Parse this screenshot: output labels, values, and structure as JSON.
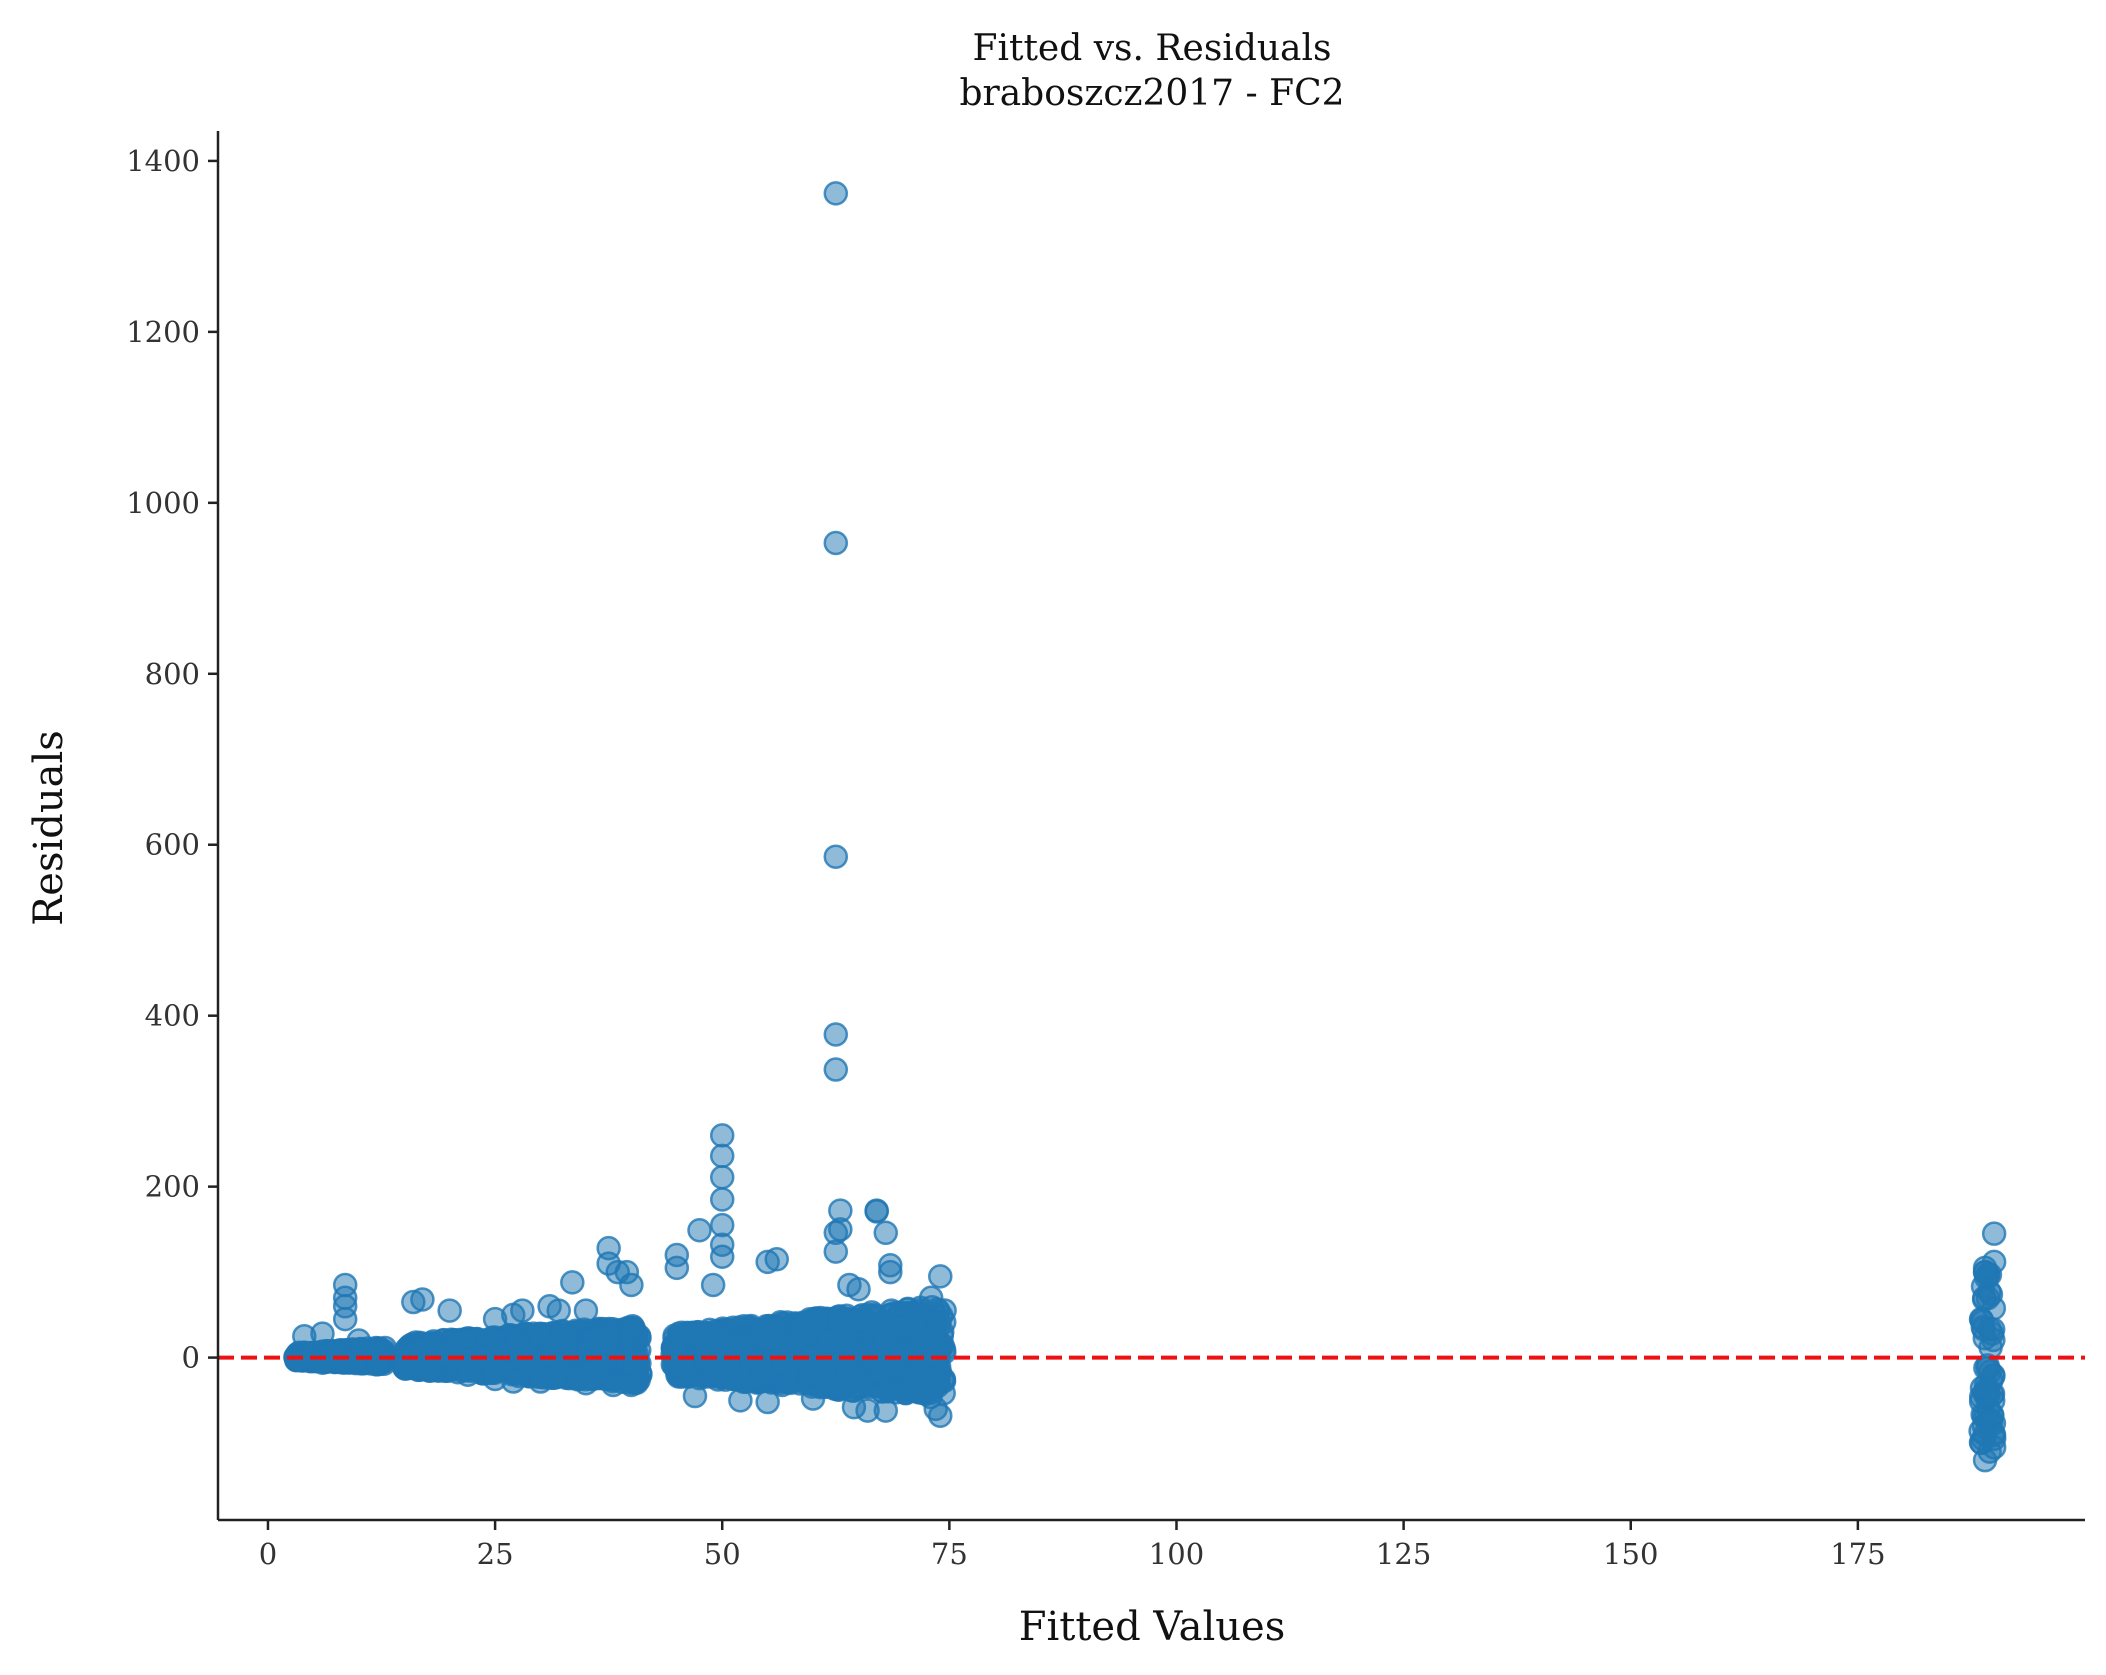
{
  "chart_data": {
    "type": "scatter",
    "title": "Fitted vs. Residuals",
    "subtitle": "braboszcz2017 - FC2",
    "xlabel": "Fitted Values",
    "ylabel": "Residuals",
    "xlim": [
      -5.5,
      200
    ],
    "ylim": [
      -190,
      1435
    ],
    "x_ticks": [
      0,
      25,
      50,
      75,
      100,
      125,
      150,
      175
    ],
    "y_ticks": [
      0,
      200,
      400,
      600,
      800,
      1000,
      1200,
      1400
    ],
    "x_tick_labels": [
      "0",
      "25",
      "50",
      "75",
      "100",
      "125",
      "150",
      "175"
    ],
    "y_tick_labels": [
      "0",
      "200",
      "400",
      "600",
      "800",
      "1000",
      "1200",
      "1400"
    ],
    "reference_line": {
      "y": 0,
      "style": "dashed",
      "color": "#ee1111"
    },
    "grid": false,
    "point_color": "#1f77b4",
    "point_alpha": 0.5,
    "bands": [
      {
        "x_min": 3,
        "x_max": 13,
        "y_low": -8,
        "y_high": 12
      },
      {
        "x_min": 15,
        "x_max": 41,
        "y_low": -30,
        "y_high": 38
      },
      {
        "x_min": 44.5,
        "x_max": 74.5,
        "y_low": -48,
        "y_high": 62
      },
      {
        "x_min": 188.5,
        "x_max": 190,
        "y_low": -100,
        "y_high": 100
      }
    ],
    "series": [
      {
        "values": [
          [
            62.5,
            1362
          ],
          [
            62.5,
            953
          ],
          [
            62.5,
            586
          ],
          [
            62.5,
            378
          ],
          [
            62.5,
            337
          ],
          [
            50,
            260
          ],
          [
            50,
            236
          ],
          [
            50,
            211
          ],
          [
            50,
            185
          ],
          [
            50,
            155
          ],
          [
            50,
            132
          ],
          [
            50,
            118
          ],
          [
            63,
            172
          ],
          [
            67,
            172
          ],
          [
            67,
            171
          ],
          [
            68,
            146
          ],
          [
            62.5,
            146
          ],
          [
            63,
            150
          ],
          [
            62.5,
            124
          ],
          [
            47.5,
            149
          ],
          [
            45,
            120
          ],
          [
            45,
            105
          ],
          [
            55,
            112
          ],
          [
            56,
            115
          ],
          [
            49,
            85
          ],
          [
            37.5,
            128
          ],
          [
            37.5,
            110
          ],
          [
            38.5,
            100
          ],
          [
            39.5,
            100
          ],
          [
            40,
            85
          ],
          [
            33.5,
            88
          ],
          [
            68.5,
            108
          ],
          [
            68.5,
            100
          ],
          [
            74,
            95
          ],
          [
            73,
            70
          ],
          [
            64,
            85
          ],
          [
            65,
            80
          ],
          [
            8.5,
            85
          ],
          [
            8.5,
            70
          ],
          [
            8.5,
            60
          ],
          [
            8.5,
            45
          ],
          [
            4,
            25
          ],
          [
            6,
            28
          ],
          [
            10,
            20
          ],
          [
            16,
            65
          ],
          [
            17,
            68
          ],
          [
            20,
            55
          ],
          [
            25,
            45
          ],
          [
            27,
            50
          ],
          [
            28,
            55
          ],
          [
            31,
            60
          ],
          [
            32,
            55
          ],
          [
            35,
            55
          ],
          [
            190,
            145
          ],
          [
            190,
            112
          ],
          [
            189,
            105
          ],
          [
            189,
            100
          ],
          [
            189,
            -120
          ],
          [
            189.5,
            -110
          ],
          [
            190,
            -105
          ],
          [
            190,
            -95
          ],
          [
            189,
            -90
          ],
          [
            74,
            -68
          ],
          [
            73.5,
            -60
          ],
          [
            68,
            -62
          ],
          [
            66,
            -62
          ],
          [
            64.5,
            -58
          ],
          [
            60,
            -48
          ],
          [
            55,
            -52
          ],
          [
            52,
            -50
          ],
          [
            47,
            -45
          ],
          [
            40,
            -32
          ],
          [
            38,
            -32
          ],
          [
            35,
            -30
          ],
          [
            30,
            -28
          ],
          [
            27,
            -28
          ],
          [
            25,
            -25
          ],
          [
            22,
            -20
          ],
          [
            18,
            -15
          ],
          [
            15,
            -12
          ],
          [
            12,
            -8
          ],
          [
            6,
            -6
          ],
          [
            4,
            -3
          ]
        ]
      }
    ]
  }
}
